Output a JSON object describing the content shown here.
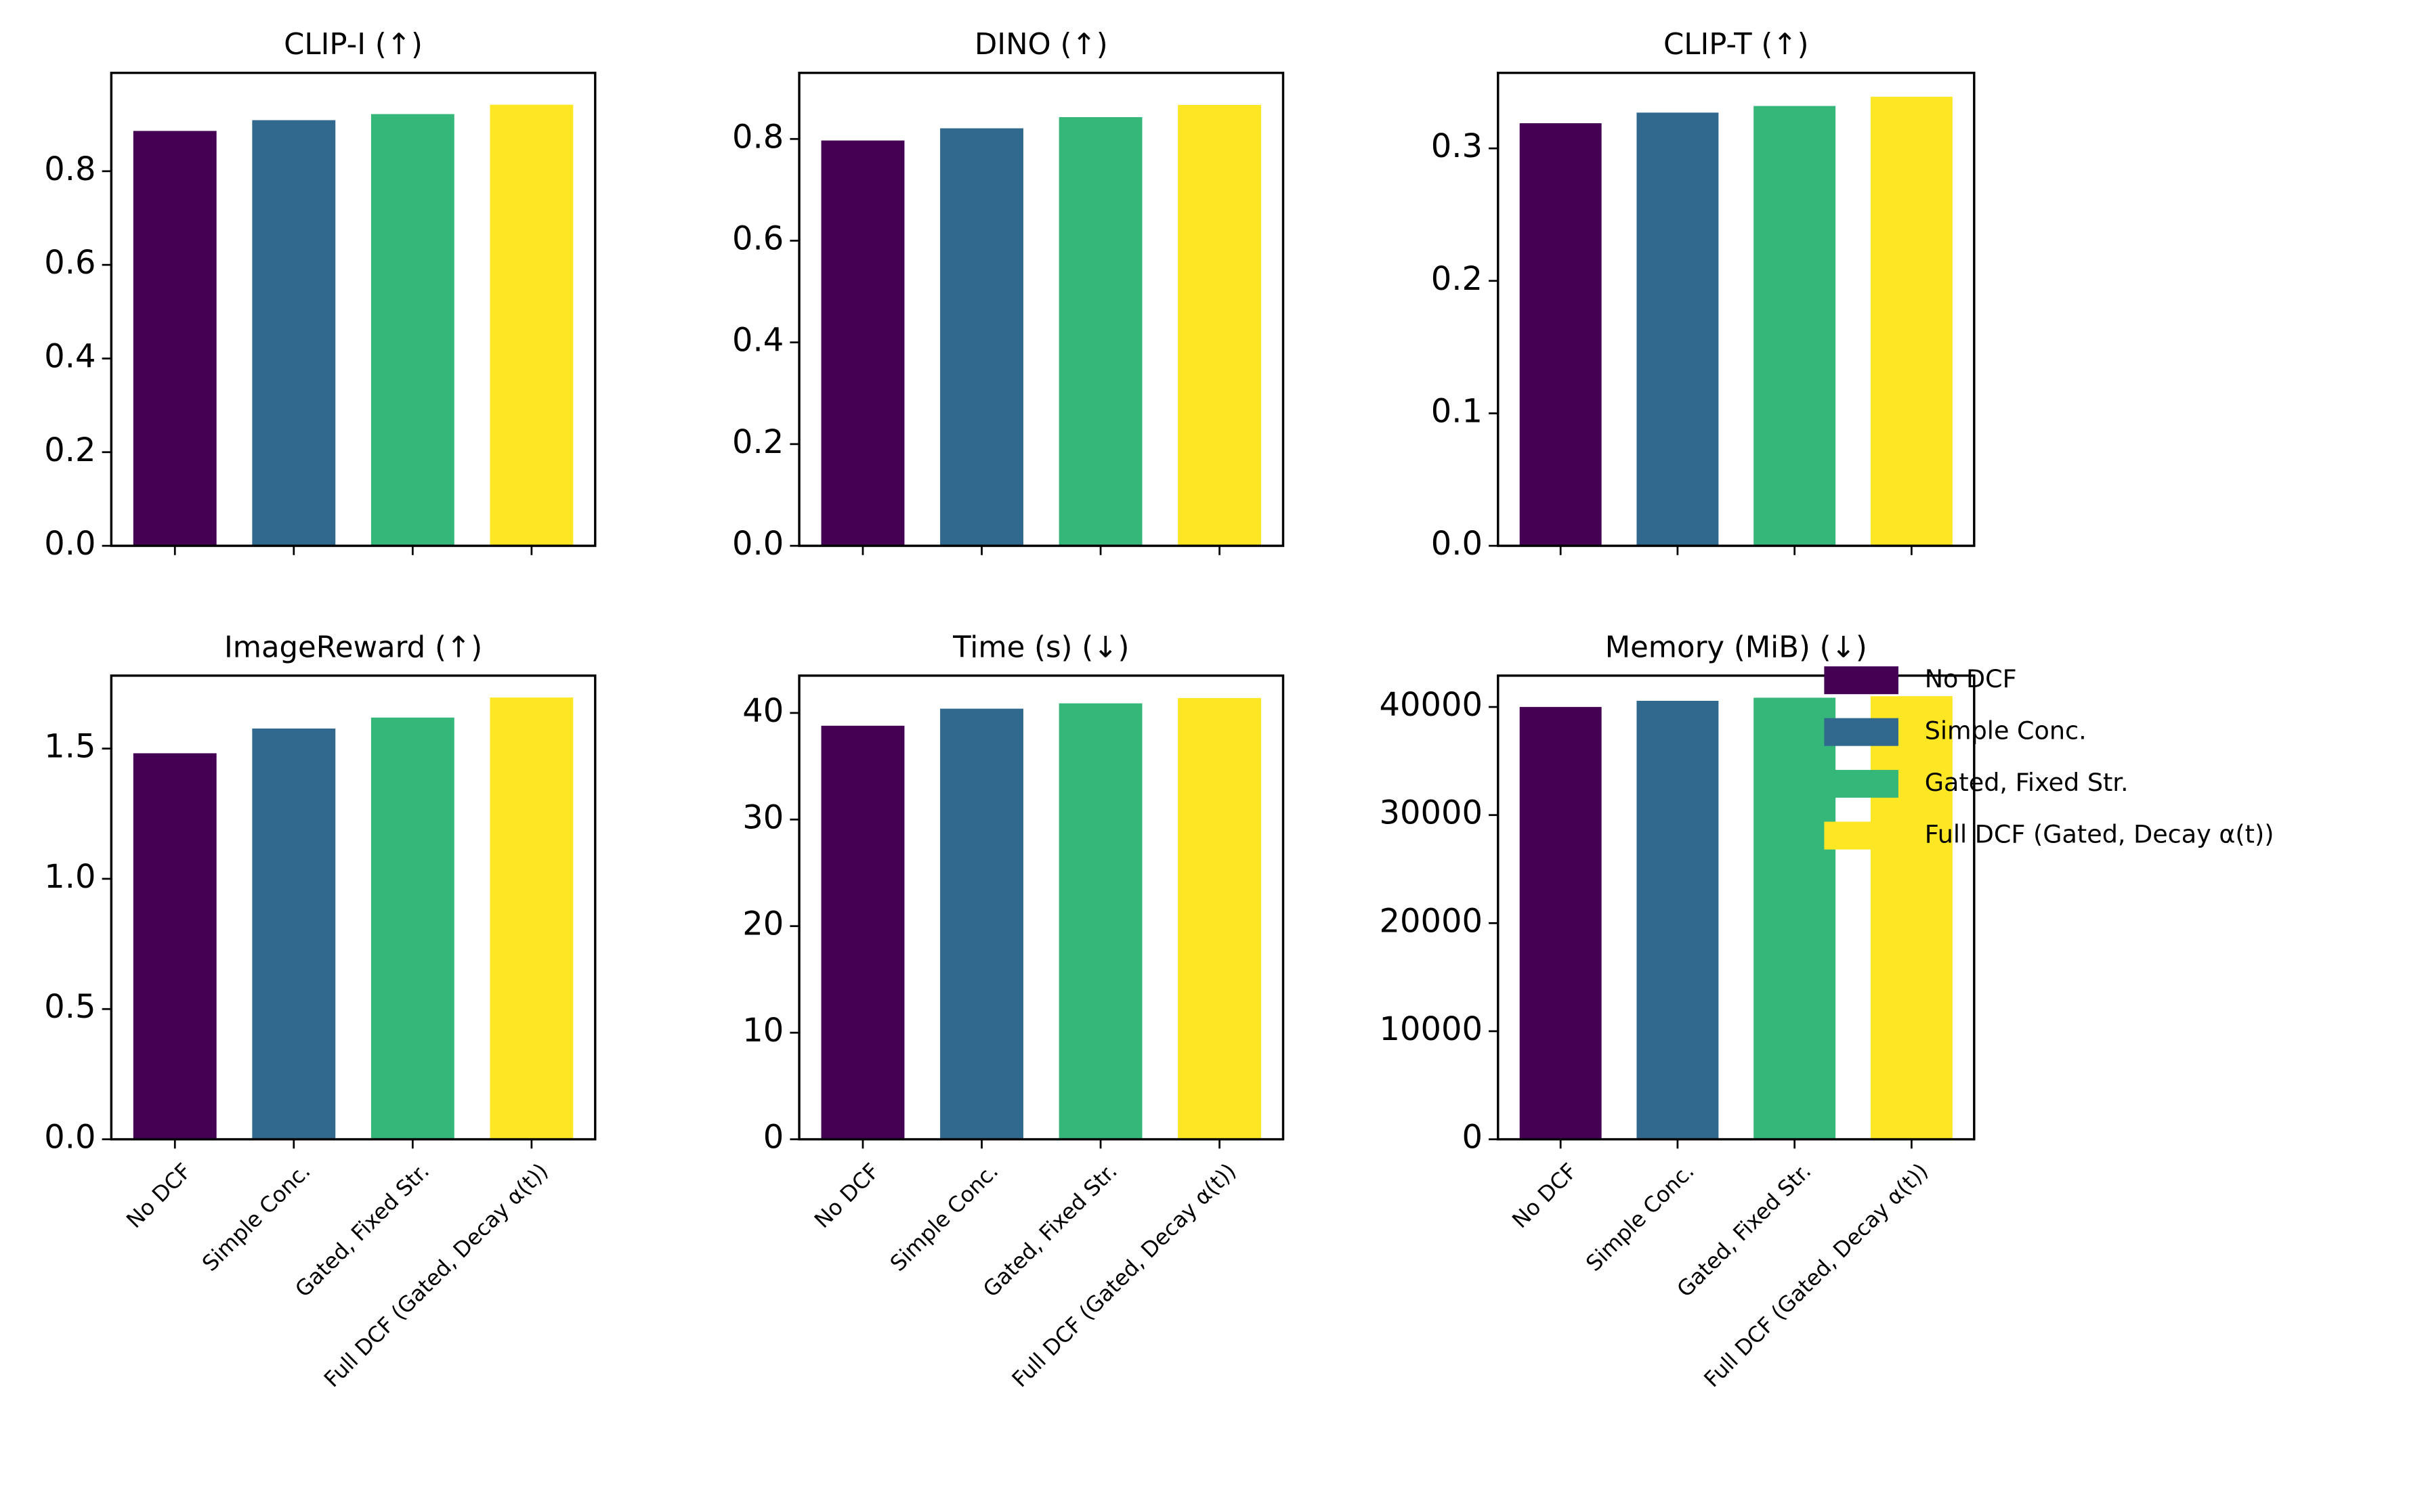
{
  "chart_data": [
    {
      "type": "bar",
      "title": "CLIP-I (↑)",
      "categories": [
        null,
        null,
        null,
        null
      ],
      "values": [
        0.886,
        0.909,
        0.922,
        0.942
      ],
      "colors": [
        "#440154",
        "#31688e",
        "#35b779",
        "#fde725"
      ],
      "ylim": [
        0,
        1.01
      ],
      "yticks": [
        {
          "value": 0,
          "label": "0.0"
        },
        0.2,
        0.4,
        0.6,
        0.8
      ]
    },
    {
      "type": "bar",
      "title": "DINO (↑)",
      "categories": [
        null,
        null,
        null,
        null
      ],
      "values": [
        0.797,
        0.821,
        0.843,
        0.867
      ],
      "colors": [
        "#440154",
        "#31688e",
        "#35b779",
        "#fde725"
      ],
      "ylim": [
        0,
        0.93
      ],
      "yticks": [
        {
          "value": 0,
          "label": "0.0"
        },
        0.2,
        0.4,
        0.6,
        0.8
      ]
    },
    {
      "type": "bar",
      "title": "CLIP-T (↑)",
      "categories": [
        null,
        null,
        null,
        null
      ],
      "values": [
        0.319,
        0.327,
        0.332,
        0.339
      ],
      "colors": [
        "#440154",
        "#31688e",
        "#35b779",
        "#fde725"
      ],
      "ylim": [
        0,
        0.357
      ],
      "yticks": [
        {
          "value": 0,
          "label": "0.0"
        },
        0.1,
        0.2,
        0.3
      ]
    },
    {
      "type": "bar",
      "title": "ImageReward (↑)",
      "categories": [
        "No DCF",
        "Simple Conc.",
        "Gated, Fixed Str.",
        "Full DCF (Gated, Decay α(t))"
      ],
      "values": [
        1.482,
        1.577,
        1.619,
        1.696
      ],
      "colors": [
        "#440154",
        "#31688e",
        "#35b779",
        "#fde725"
      ],
      "ylim": [
        0,
        1.78
      ],
      "yticks": [
        {
          "value": 0,
          "label": "0.0"
        },
        0.5,
        {
          "value": 1,
          "label": "1.0"
        },
        1.5
      ]
    },
    {
      "type": "bar",
      "title": "Time (s) (↓)",
      "categories": [
        "No DCF",
        "Simple Conc.",
        "Gated, Fixed Str.",
        "Full DCF (Gated, Decay α(t))"
      ],
      "values": [
        38.8,
        40.4,
        40.9,
        41.4
      ],
      "colors": [
        "#440154",
        "#31688e",
        "#35b779",
        "#fde725"
      ],
      "ylim": [
        0,
        43.5
      ],
      "yticks": [
        0,
        10,
        20,
        30,
        40
      ]
    },
    {
      "type": "bar",
      "title": "Memory (MiB) (↓)",
      "categories": [
        "No DCF",
        "Simple Conc.",
        "Gated, Fixed Str.",
        "Full DCF (Gated, Decay α(t))"
      ],
      "values": [
        40000,
        40571,
        40857,
        41000
      ],
      "colors": [
        "#440154",
        "#31688e",
        "#35b779",
        "#fde725"
      ],
      "ylim": [
        0,
        42900
      ],
      "yticks": [
        0,
        10000,
        20000,
        30000,
        40000
      ],
      "legend": "outside-right"
    }
  ]
}
